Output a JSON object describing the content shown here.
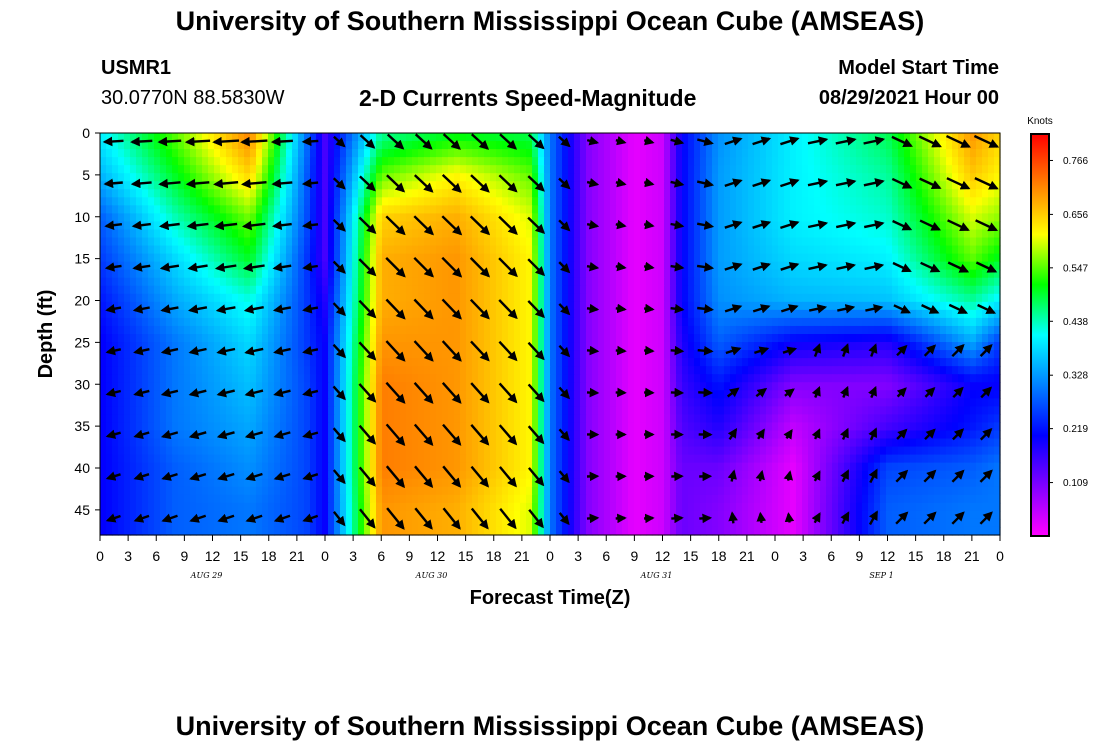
{
  "header": {
    "title_top": "University of Southern Mississippi Ocean Cube (AMSEAS)",
    "title_bottom": "University of Southern Mississippi Ocean Cube (AMSEAS)",
    "station": "USMR1",
    "location": "30.0770N  88.5830W",
    "subtitle": "2-D Currents Speed-Magnitude",
    "model_label": "Model Start Time",
    "model_time": "08/29/2021 Hour 00"
  },
  "chart_data": {
    "type": "heatmap",
    "title": "2-D Currents Speed-Magnitude",
    "xlabel": "Forecast Time(Z)",
    "ylabel": "Depth (ft)",
    "x_hours_range": [
      0,
      96
    ],
    "xticks_hours": [
      0,
      3,
      6,
      9,
      12,
      15,
      18,
      21,
      24,
      27,
      30,
      33,
      36,
      39,
      42,
      45,
      48,
      51,
      54,
      57,
      60,
      63,
      66,
      69,
      72,
      75,
      78,
      81,
      84,
      87,
      90,
      93,
      96
    ],
    "xtick_labels": [
      "0",
      "3",
      "6",
      "9",
      "12",
      "15",
      "18",
      "21",
      "0",
      "3",
      "6",
      "9",
      "12",
      "15",
      "18",
      "21",
      "0",
      "3",
      "6",
      "9",
      "12",
      "15",
      "18",
      "21",
      "0",
      "3",
      "6",
      "9",
      "12",
      "15",
      "18",
      "21",
      "0"
    ],
    "date_labels": [
      {
        "text": "AUG 29",
        "hour": 12
      },
      {
        "text": "AUG 30",
        "hour": 36
      },
      {
        "text": "AUG 31",
        "hour": 60
      },
      {
        "text": "SEP 1",
        "hour": 84
      }
    ],
    "ylim": [
      0,
      48
    ],
    "yticks": [
      0,
      5,
      10,
      15,
      20,
      25,
      30,
      35,
      40,
      45
    ],
    "colorbar": {
      "unit": "Knots",
      "range": [
        0.0,
        0.82
      ],
      "tick_values": [
        0.766,
        0.656,
        0.547,
        0.438,
        0.328,
        0.219,
        0.109
      ],
      "tick_labels": [
        "0.766",
        "0.656",
        "0.547",
        "0.438",
        "0.328",
        "0.219",
        "0.109"
      ],
      "colors": [
        "#ff00ff",
        "#8000ff",
        "#0000ff",
        "#0080ff",
        "#00ffff",
        "#00ff00",
        "#ffff00",
        "#ff8000",
        "#ff0000"
      ]
    },
    "depths_ft": [
      0,
      5,
      10,
      15,
      20,
      25,
      30,
      35,
      40,
      45
    ],
    "times_h": [
      0,
      8,
      16,
      22,
      24,
      30,
      38,
      46,
      48,
      52,
      57,
      60,
      62,
      66,
      74,
      84,
      93,
      96
    ],
    "speed_knots": [
      [
        0.4,
        0.55,
        0.72,
        0.3,
        0.15,
        0.45,
        0.5,
        0.48,
        0.3,
        0.1,
        0.02,
        0.04,
        0.2,
        0.32,
        0.4,
        0.48,
        0.7,
        0.65
      ],
      [
        0.35,
        0.5,
        0.65,
        0.28,
        0.15,
        0.55,
        0.62,
        0.55,
        0.3,
        0.1,
        0.02,
        0.04,
        0.2,
        0.33,
        0.4,
        0.45,
        0.66,
        0.62
      ],
      [
        0.28,
        0.44,
        0.56,
        0.27,
        0.15,
        0.65,
        0.68,
        0.6,
        0.3,
        0.1,
        0.02,
        0.04,
        0.2,
        0.33,
        0.4,
        0.43,
        0.6,
        0.57
      ],
      [
        0.25,
        0.38,
        0.5,
        0.25,
        0.15,
        0.68,
        0.7,
        0.62,
        0.3,
        0.1,
        0.02,
        0.04,
        0.2,
        0.33,
        0.38,
        0.4,
        0.55,
        0.5
      ],
      [
        0.22,
        0.34,
        0.42,
        0.25,
        0.18,
        0.68,
        0.7,
        0.62,
        0.3,
        0.1,
        0.02,
        0.04,
        0.2,
        0.32,
        0.35,
        0.36,
        0.45,
        0.4
      ],
      [
        0.2,
        0.3,
        0.38,
        0.25,
        0.2,
        0.7,
        0.7,
        0.62,
        0.3,
        0.1,
        0.02,
        0.04,
        0.18,
        0.28,
        0.2,
        0.18,
        0.34,
        0.25
      ],
      [
        0.2,
        0.3,
        0.36,
        0.26,
        0.2,
        0.72,
        0.7,
        0.62,
        0.3,
        0.1,
        0.02,
        0.04,
        0.16,
        0.22,
        0.1,
        0.1,
        0.2,
        0.2
      ],
      [
        0.2,
        0.3,
        0.34,
        0.26,
        0.2,
        0.72,
        0.7,
        0.62,
        0.3,
        0.1,
        0.02,
        0.04,
        0.14,
        0.18,
        0.05,
        0.15,
        0.22,
        0.25
      ],
      [
        0.2,
        0.28,
        0.32,
        0.26,
        0.2,
        0.72,
        0.7,
        0.62,
        0.3,
        0.1,
        0.02,
        0.04,
        0.12,
        0.12,
        0.02,
        0.26,
        0.28,
        0.3
      ],
      [
        0.2,
        0.28,
        0.3,
        0.26,
        0.2,
        0.7,
        0.68,
        0.6,
        0.3,
        0.1,
        0.02,
        0.04,
        0.12,
        0.1,
        0.02,
        0.28,
        0.3,
        0.3
      ]
    ],
    "vector_direction_deg_sample": [
      {
        "hour": 6,
        "depth": 5,
        "deg": 185
      },
      {
        "hour": 36,
        "depth": 25,
        "deg": 315
      },
      {
        "hour": 90,
        "depth": 45,
        "deg": 45
      }
    ]
  }
}
